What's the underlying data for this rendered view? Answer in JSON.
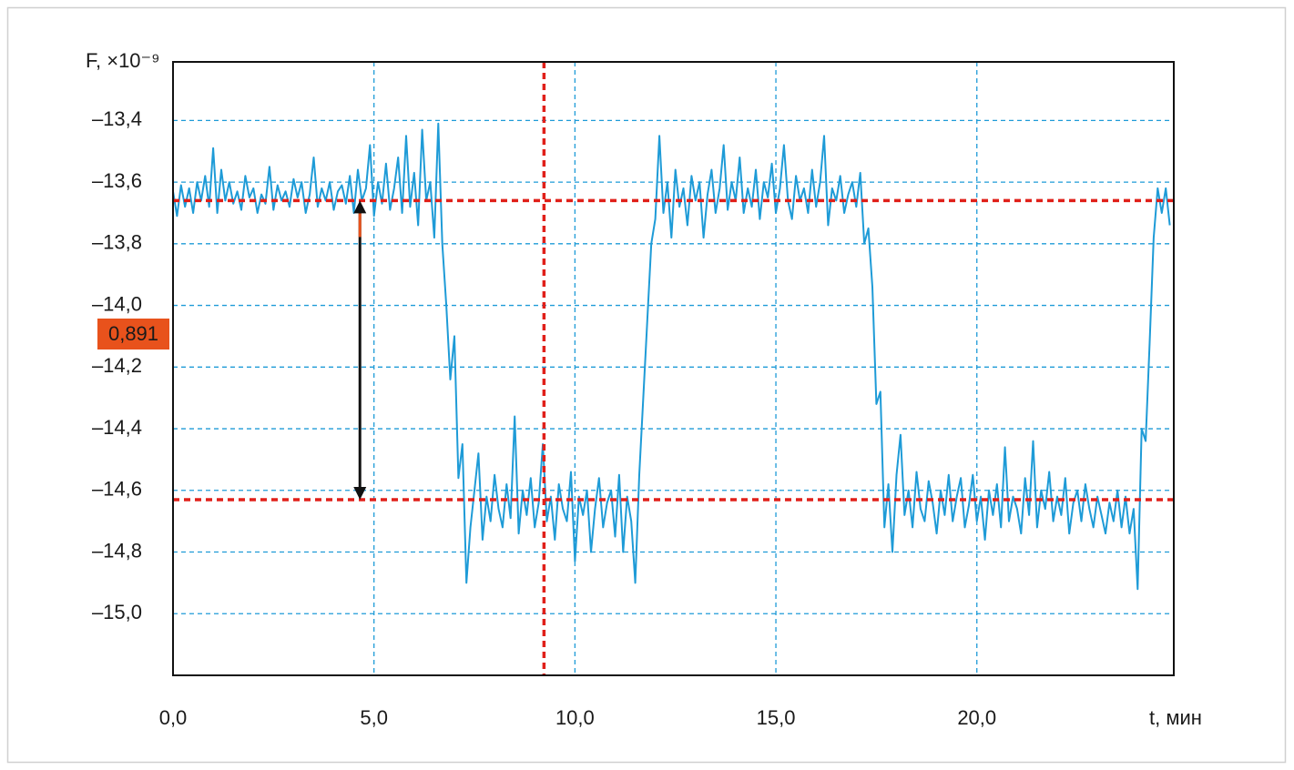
{
  "chart_data": {
    "type": "line",
    "ylabel": "F, ×10⁻⁹",
    "xlabel": "t, мин",
    "color": "#1e9bd7",
    "grid": true,
    "xlim": [
      0,
      24.9
    ],
    "ylim": [
      -15.2,
      -13.21
    ],
    "xticks": [
      {
        "value": 0,
        "label": "0,0"
      },
      {
        "value": 5,
        "label": "5,0"
      },
      {
        "value": 10,
        "label": "10,0"
      },
      {
        "value": 15,
        "label": "15,0"
      },
      {
        "value": 20,
        "label": "20,0"
      }
    ],
    "yticks": [
      {
        "value": -13.4,
        "label": "–13,4"
      },
      {
        "value": -13.6,
        "label": "–13,6"
      },
      {
        "value": -13.8,
        "label": "–13,8"
      },
      {
        "value": -14.0,
        "label": "–14,0"
      },
      {
        "value": -14.2,
        "label": "–14,2"
      },
      {
        "value": -14.4,
        "label": "–14,4"
      },
      {
        "value": -14.6,
        "label": "–14,6"
      },
      {
        "value": -14.8,
        "label": "–14,8"
      },
      {
        "value": -15.0,
        "label": "–15,0"
      }
    ],
    "reference_lines": {
      "color": "#e0201a",
      "y": [
        -13.66,
        -14.63
      ],
      "x": 9.23
    },
    "annotation": {
      "label": "0,891",
      "x": 4.65,
      "color": "#e8521c"
    },
    "x": [
      0,
      0.1,
      0.2,
      0.3,
      0.4,
      0.5,
      0.6,
      0.7,
      0.8,
      0.9,
      1,
      1.1,
      1.2,
      1.3,
      1.4,
      1.5,
      1.6,
      1.7,
      1.8,
      1.9,
      2,
      2.1,
      2.2,
      2.3,
      2.4,
      2.5,
      2.6,
      2.7,
      2.8,
      2.9,
      3,
      3.1,
      3.2,
      3.3,
      3.4,
      3.5,
      3.6,
      3.7,
      3.8,
      3.9,
      4,
      4.1,
      4.2,
      4.3,
      4.4,
      4.5,
      4.6,
      4.7,
      4.8,
      4.9,
      5,
      5.1,
      5.2,
      5.3,
      5.4,
      5.5,
      5.6,
      5.7,
      5.8,
      5.9,
      6,
      6.1,
      6.2,
      6.3,
      6.4,
      6.5,
      6.6,
      6.7,
      6.8,
      6.9,
      7,
      7.1,
      7.2,
      7.3,
      7.4,
      7.5,
      7.6,
      7.7,
      7.8,
      7.9,
      8,
      8.1,
      8.2,
      8.3,
      8.4,
      8.5,
      8.6,
      8.7,
      8.8,
      8.9,
      9,
      9.1,
      9.2,
      9.3,
      9.4,
      9.5,
      9.6,
      9.7,
      9.8,
      9.9,
      10,
      10.1,
      10.2,
      10.3,
      10.4,
      10.5,
      10.6,
      10.7,
      10.8,
      10.9,
      11,
      11.1,
      11.2,
      11.3,
      11.4,
      11.5,
      11.6,
      11.7,
      11.8,
      11.9,
      12,
      12.1,
      12.2,
      12.3,
      12.4,
      12.5,
      12.6,
      12.7,
      12.8,
      12.9,
      13,
      13.1,
      13.2,
      13.3,
      13.4,
      13.5,
      13.6,
      13.7,
      13.8,
      13.9,
      14,
      14.1,
      14.2,
      14.3,
      14.4,
      14.5,
      14.6,
      14.7,
      14.8,
      14.9,
      15,
      15.1,
      15.2,
      15.3,
      15.4,
      15.5,
      15.6,
      15.7,
      15.8,
      15.9,
      16,
      16.1,
      16.2,
      16.3,
      16.4,
      16.5,
      16.6,
      16.7,
      16.8,
      16.9,
      17,
      17.1,
      17.2,
      17.3,
      17.4,
      17.5,
      17.6,
      17.7,
      17.8,
      17.9,
      18,
      18.1,
      18.2,
      18.3,
      18.4,
      18.5,
      18.6,
      18.7,
      18.8,
      18.9,
      19,
      19.1,
      19.2,
      19.3,
      19.4,
      19.5,
      19.6,
      19.7,
      19.8,
      19.9,
      20,
      20.1,
      20.2,
      20.3,
      20.4,
      20.5,
      20.6,
      20.7,
      20.8,
      20.9,
      21,
      21.1,
      21.2,
      21.3,
      21.4,
      21.5,
      21.6,
      21.7,
      21.8,
      21.9,
      22,
      22.1,
      22.2,
      22.3,
      22.4,
      22.5,
      22.6,
      22.7,
      22.8,
      22.9,
      23,
      23.1,
      23.2,
      23.3,
      23.4,
      23.5,
      23.6,
      23.7,
      23.8,
      23.9,
      24,
      24.1,
      24.2,
      24.3,
      24.4,
      24.5,
      24.6,
      24.7,
      24.8
    ],
    "values": [
      -13.63,
      -13.71,
      -13.61,
      -13.68,
      -13.62,
      -13.7,
      -13.6,
      -13.66,
      -13.58,
      -13.68,
      -13.49,
      -13.7,
      -13.56,
      -13.66,
      -13.6,
      -13.67,
      -13.63,
      -13.69,
      -13.58,
      -13.65,
      -13.62,
      -13.7,
      -13.64,
      -13.67,
      -13.55,
      -13.69,
      -13.61,
      -13.66,
      -13.63,
      -13.68,
      -13.59,
      -13.65,
      -13.6,
      -13.7,
      -13.64,
      -13.52,
      -13.68,
      -13.62,
      -13.66,
      -13.6,
      -13.69,
      -13.63,
      -13.61,
      -13.67,
      -13.58,
      -13.7,
      -13.56,
      -13.66,
      -13.62,
      -13.48,
      -13.71,
      -13.6,
      -13.67,
      -13.54,
      -13.69,
      -13.62,
      -13.52,
      -13.7,
      -13.45,
      -13.68,
      -13.57,
      -13.74,
      -13.43,
      -13.66,
      -13.6,
      -13.78,
      -13.41,
      -13.8,
      -14.0,
      -14.24,
      -14.1,
      -14.56,
      -14.45,
      -14.9,
      -14.72,
      -14.6,
      -14.48,
      -14.76,
      -14.62,
      -14.7,
      -14.55,
      -14.66,
      -14.72,
      -14.58,
      -14.69,
      -14.36,
      -14.74,
      -14.6,
      -14.68,
      -14.56,
      -14.72,
      -14.64,
      -14.45,
      -14.7,
      -14.62,
      -14.76,
      -14.58,
      -14.66,
      -14.7,
      -14.54,
      -14.83,
      -14.62,
      -14.68,
      -14.6,
      -14.8,
      -14.66,
      -14.56,
      -14.72,
      -14.64,
      -14.6,
      -14.75,
      -14.55,
      -14.8,
      -14.62,
      -14.7,
      -14.9,
      -14.55,
      -14.3,
      -14.05,
      -13.8,
      -13.72,
      -13.45,
      -13.7,
      -13.6,
      -13.78,
      -13.56,
      -13.68,
      -13.62,
      -13.74,
      -13.58,
      -13.66,
      -13.6,
      -13.78,
      -13.64,
      -13.56,
      -13.7,
      -13.62,
      -13.48,
      -13.69,
      -13.6,
      -13.66,
      -13.52,
      -13.7,
      -13.62,
      -13.68,
      -13.56,
      -13.72,
      -13.6,
      -13.65,
      -13.54,
      -13.7,
      -13.62,
      -13.48,
      -13.66,
      -13.72,
      -13.58,
      -13.66,
      -13.62,
      -13.7,
      -13.56,
      -13.68,
      -13.6,
      -13.45,
      -13.74,
      -13.62,
      -13.66,
      -13.58,
      -13.7,
      -13.64,
      -13.6,
      -13.68,
      -13.57,
      -13.8,
      -13.75,
      -13.94,
      -14.32,
      -14.28,
      -14.72,
      -14.58,
      -14.8,
      -14.55,
      -14.42,
      -14.68,
      -14.6,
      -14.72,
      -14.54,
      -14.66,
      -14.7,
      -14.57,
      -14.64,
      -14.74,
      -14.6,
      -14.68,
      -14.55,
      -14.7,
      -14.62,
      -14.56,
      -14.72,
      -14.65,
      -14.55,
      -14.7,
      -14.62,
      -14.76,
      -14.6,
      -14.68,
      -14.58,
      -14.72,
      -14.46,
      -14.7,
      -14.62,
      -14.66,
      -14.74,
      -14.56,
      -14.68,
      -14.44,
      -14.72,
      -14.6,
      -14.66,
      -14.54,
      -14.7,
      -14.62,
      -14.68,
      -14.56,
      -14.74,
      -14.64,
      -14.6,
      -14.7,
      -14.58,
      -14.66,
      -14.72,
      -14.62,
      -14.68,
      -14.74,
      -14.64,
      -14.7,
      -14.6,
      -14.72,
      -14.62,
      -14.74,
      -14.66,
      -14.92,
      -14.4,
      -14.44,
      -14.12,
      -13.78,
      -13.62,
      -13.7,
      -13.62,
      -13.74
    ]
  }
}
